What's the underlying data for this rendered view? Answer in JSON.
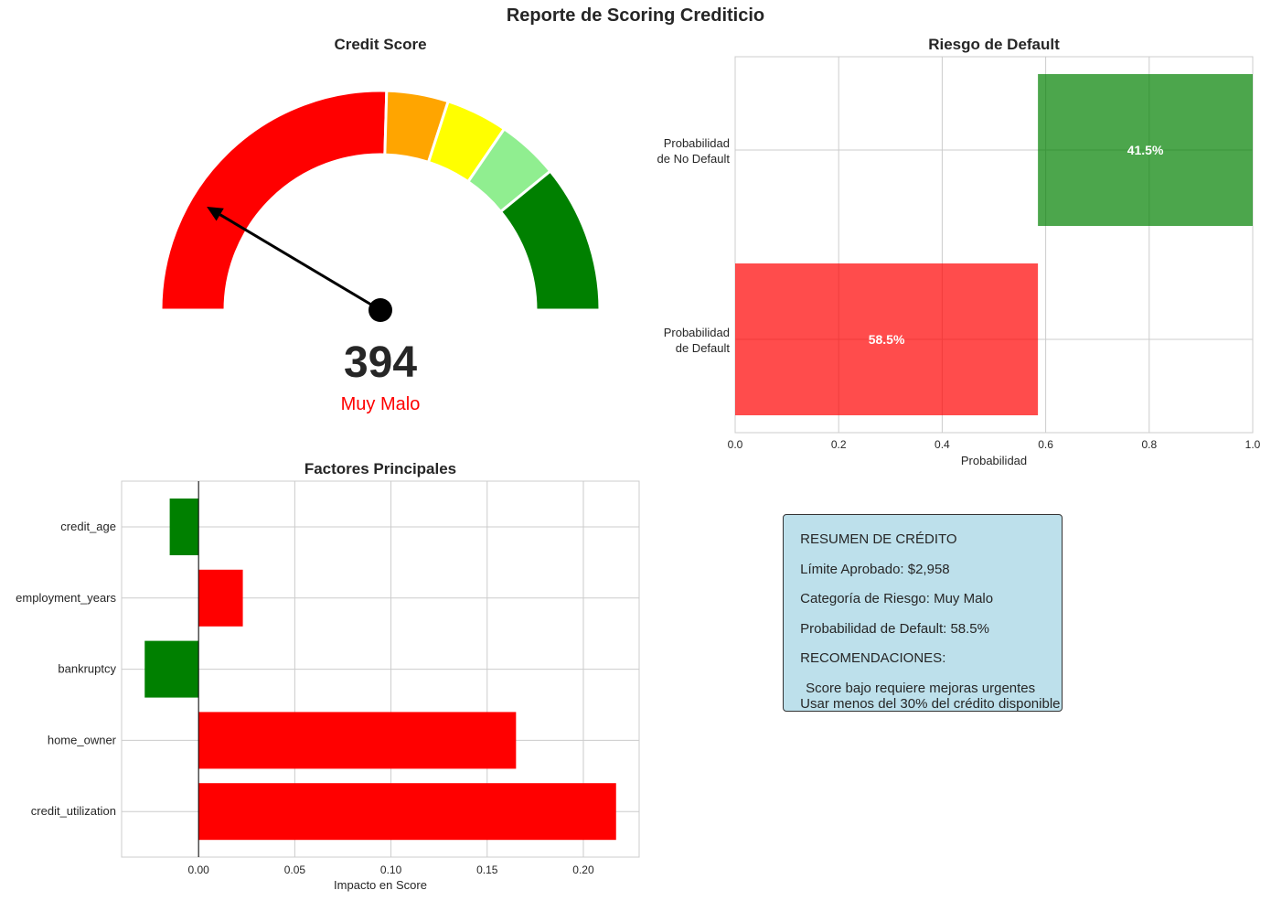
{
  "page": {
    "title": "Reporte de Scoring Crediticio"
  },
  "chart_data": [
    {
      "type": "gauge",
      "title": "Credit Score",
      "score": 394,
      "score_text": "394",
      "category": "Muy Malo",
      "category_color": "#ff0000",
      "range": [
        300,
        850
      ],
      "segments": [
        {
          "from": 300,
          "to": 580,
          "color": "#ff0000"
        },
        {
          "from": 580,
          "to": 630,
          "color": "#ffa500"
        },
        {
          "from": 630,
          "to": 680,
          "color": "#ffff00"
        },
        {
          "from": 680,
          "to": 730,
          "color": "#90ee90"
        },
        {
          "from": 730,
          "to": 850,
          "color": "#008000"
        }
      ]
    },
    {
      "type": "bar",
      "orientation": "horizontal",
      "stacked": true,
      "title": "Riesgo de Default",
      "xlabel": "Probabilidad",
      "ylabel": "",
      "xlim": [
        0.0,
        1.0
      ],
      "xticks": [
        "0.0",
        "0.2",
        "0.4",
        "0.6",
        "0.8",
        "1.0"
      ],
      "grid": true,
      "categories": [
        {
          "label_line1": "Probabilidad",
          "label_line2": "de Default",
          "start": 0.0,
          "value": 0.585,
          "color": "#ff0000",
          "value_label": "58.5%"
        },
        {
          "label_line1": "Probabilidad",
          "label_line2": "de No Default",
          "start": 0.585,
          "value": 0.415,
          "color": "#008000",
          "value_label": "41.5%"
        }
      ]
    },
    {
      "type": "bar",
      "orientation": "horizontal",
      "title": "Factores Principales",
      "xlabel": "Impacto en Score",
      "ylabel": "",
      "xlim": [
        -0.04,
        0.229
      ],
      "xticks": [
        {
          "value": 0.0,
          "label": "0.00"
        },
        {
          "value": 0.05,
          "label": "0.05"
        },
        {
          "value": 0.1,
          "label": "0.10"
        },
        {
          "value": 0.15,
          "label": "0.15"
        },
        {
          "value": 0.2,
          "label": "0.20"
        }
      ],
      "grid": true,
      "categories": [
        "credit_age",
        "employment_years",
        "bankruptcy",
        "home_owner",
        "credit_utilization"
      ],
      "values": [
        -0.015,
        0.023,
        -0.028,
        0.165,
        0.217
      ],
      "positive_color": "#ff0000",
      "negative_color": "#008000"
    }
  ],
  "summary": {
    "icon_glyph": "",
    "line1": "RESUMEN DE CRÉDITO",
    "line2": "Límite Aprobado: $2,958",
    "line3": "Categoría de Riesgo: Muy Malo",
    "line4": "Probabilidad de Default: 58.5%",
    "line5": "RECOMENDACIONES:",
    "warn_glyph": "",
    "line6": "Score bajo requiere mejoras urgentes",
    "line7": "Usar menos del 30% del crédito disponible",
    "bg_color": "#add8e6"
  }
}
